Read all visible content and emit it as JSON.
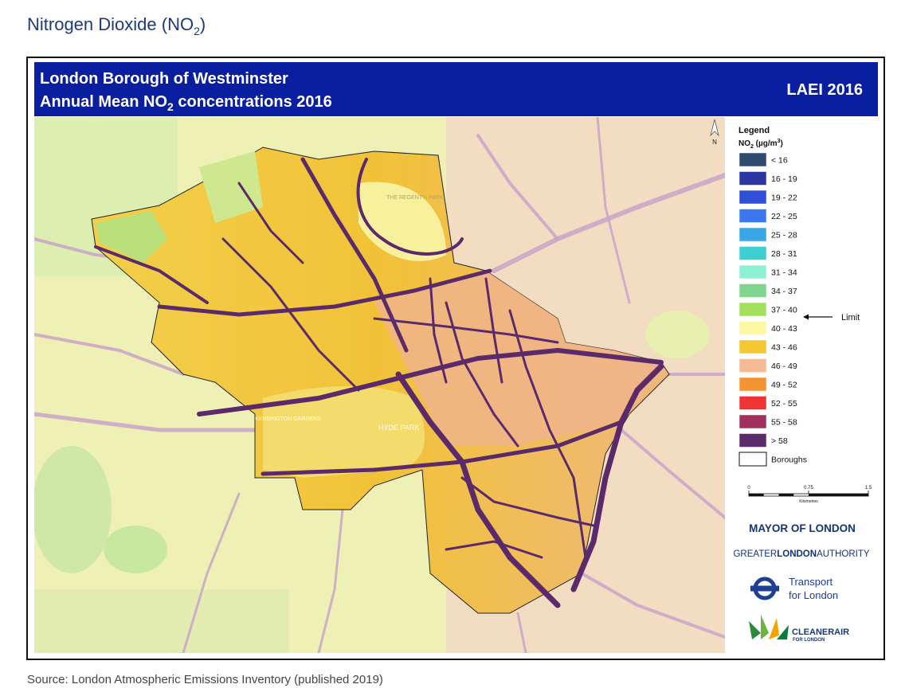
{
  "header": {
    "title": {
      "text": "Nitrogen Dioxide (NO",
      "sub": "2",
      "end": ")"
    }
  },
  "map": {
    "title_line1": "London Borough of Westminster",
    "title_line2": {
      "text": "Annual Mean NO",
      "sub": "2",
      "end": " concentrations 2016"
    },
    "badge": "LAEI 2016",
    "north": "N",
    "place_labels": [
      "HYDE PARK",
      "KENSINGTON GARDENS",
      "THE REGENT'S PARK"
    ]
  },
  "legend": {
    "title": "Legend",
    "unit": {
      "a": "NO",
      "sub": "2",
      "b": " (µg/m",
      "sup": "3",
      "c": ")"
    },
    "items": [
      {
        "label": "< 16",
        "color": "#2f4a6e"
      },
      {
        "label": "16 - 19",
        "color": "#2b36a3"
      },
      {
        "label": "19 - 22",
        "color": "#2f4fd6"
      },
      {
        "label": "22 - 25",
        "color": "#3b78f0"
      },
      {
        "label": "25 - 28",
        "color": "#3aa6e6"
      },
      {
        "label": "28 - 31",
        "color": "#3fcfd2"
      },
      {
        "label": "31 - 34",
        "color": "#8ef2d2"
      },
      {
        "label": "34 - 37",
        "color": "#80d68e"
      },
      {
        "label": "37 - 40",
        "color": "#a3e05e"
      },
      {
        "label": "40 - 43",
        "color": "#fff8a3"
      },
      {
        "label": "43 - 46",
        "color": "#f4c832"
      },
      {
        "label": "46 - 49",
        "color": "#f5b993"
      },
      {
        "label": "49 - 52",
        "color": "#f59232"
      },
      {
        "label": "52 - 55",
        "color": "#ee3434"
      },
      {
        "label": "55 - 58",
        "color": "#a2305f"
      },
      {
        "label": "> 58",
        "color": "#5b2b6b"
      }
    ],
    "boroughs": "Boroughs",
    "limit": "Limit"
  },
  "scale_bar": {
    "ticks": [
      0,
      0.75,
      1.5
    ],
    "unit": "Kilometres"
  },
  "logos": {
    "mayor": "MAYOR OF LONDON",
    "gla": {
      "a": "GREATER",
      "b": "LONDON",
      "c": "AUTHORITY"
    },
    "tfl": [
      "Transport",
      "for London"
    ],
    "cleaner_air": {
      "a": "CLEANER",
      "b": "AIR",
      "c": "FOR LONDON"
    }
  },
  "source": "Source: London Atmospheric Emissions Inventory (published 2019)"
}
